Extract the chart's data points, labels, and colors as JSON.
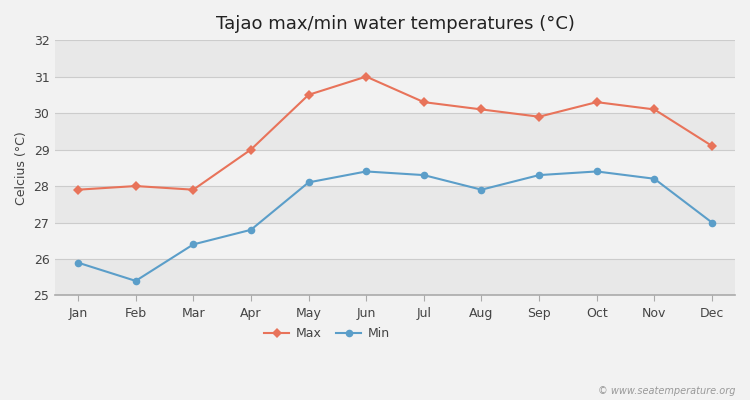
{
  "title": "Tajao max/min water temperatures (°C)",
  "ylabel": "Celcius (°C)",
  "months": [
    "Jan",
    "Feb",
    "Mar",
    "Apr",
    "May",
    "Jun",
    "Jul",
    "Aug",
    "Sep",
    "Oct",
    "Nov",
    "Dec"
  ],
  "max_values": [
    27.9,
    28.0,
    27.9,
    29.0,
    30.5,
    31.0,
    30.3,
    30.1,
    29.9,
    30.3,
    30.1,
    29.1
  ],
  "min_values": [
    25.9,
    25.4,
    26.4,
    26.8,
    28.1,
    28.4,
    28.3,
    27.9,
    28.3,
    28.4,
    28.2,
    27.0
  ],
  "max_color": "#e8735a",
  "min_color": "#5b9ec9",
  "ylim": [
    25,
    32
  ],
  "yticks": [
    25,
    26,
    27,
    28,
    29,
    30,
    31,
    32
  ],
  "fig_bg_color": "#f2f2f2",
  "band_colors": [
    "#e8e8e8",
    "#f2f2f2"
  ],
  "grid_line_color": "#cccccc",
  "watermark": "© www.seatemperature.org",
  "legend_labels": [
    "Max",
    "Min"
  ],
  "title_fontsize": 13,
  "axis_fontsize": 9,
  "tick_fontsize": 9,
  "legend_fontsize": 9
}
